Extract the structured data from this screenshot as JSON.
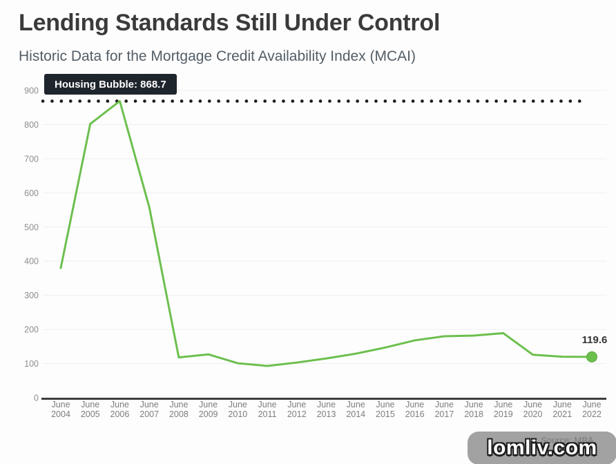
{
  "header": {
    "title": "Lending Standards Still Under Control",
    "subtitle": "Historic Data for the Mortgage Credit Availability Index (MCAI)"
  },
  "annotations": {
    "bubble_label": "Housing Bubble: 868.7",
    "latest_value_label": "119.6",
    "source": "Source: MBA",
    "watermark": "lomliv.com"
  },
  "colors": {
    "line_green": "#6cbf4d",
    "dot_green_border": "#59a73d",
    "threshold_dot": "#1d1d1d",
    "callout_bg": "#1e252d",
    "axis_label": "#8d8d8d",
    "gridline": "#eeeeee",
    "baseline": "#3d3d3d",
    "title_text": "#3a3a3c",
    "subtitle_text": "#535d66"
  },
  "chart_data": {
    "type": "line",
    "title": "Lending Standards Still Under Control",
    "subtitle": "Historic Data for the Mortgage Credit Availability Index (MCAI)",
    "xlabel": "",
    "ylabel": "",
    "categories": [
      "June 2004",
      "June 2005",
      "June 2006",
      "June 2007",
      "June 2008",
      "June 2009",
      "June 2010",
      "June 2011",
      "June 2012",
      "June 2013",
      "June 2014",
      "June 2015",
      "June 2016",
      "June 2017",
      "June 2018",
      "June 2019",
      "June 2020",
      "June 2021",
      "June 2022"
    ],
    "series": [
      {
        "name": "Mortgage Credit Availability Index",
        "values": [
          380,
          802,
          868.7,
          558,
          118,
          127,
          101,
          93,
          103,
          115,
          129,
          147,
          168,
          180,
          182,
          189,
          126,
          120,
          119.6
        ]
      }
    ],
    "threshold": {
      "label": "Housing Bubble: 868.7",
      "value": 868.7,
      "style": "dotted"
    },
    "end_point": {
      "category": "June 2022",
      "value": 119.6,
      "label": "119.6"
    },
    "yticks": [
      0,
      100,
      200,
      300,
      400,
      500,
      600,
      700,
      800,
      900
    ],
    "ylim": [
      0,
      900
    ],
    "grid": true,
    "legend": false,
    "source": "Source: MBA"
  }
}
